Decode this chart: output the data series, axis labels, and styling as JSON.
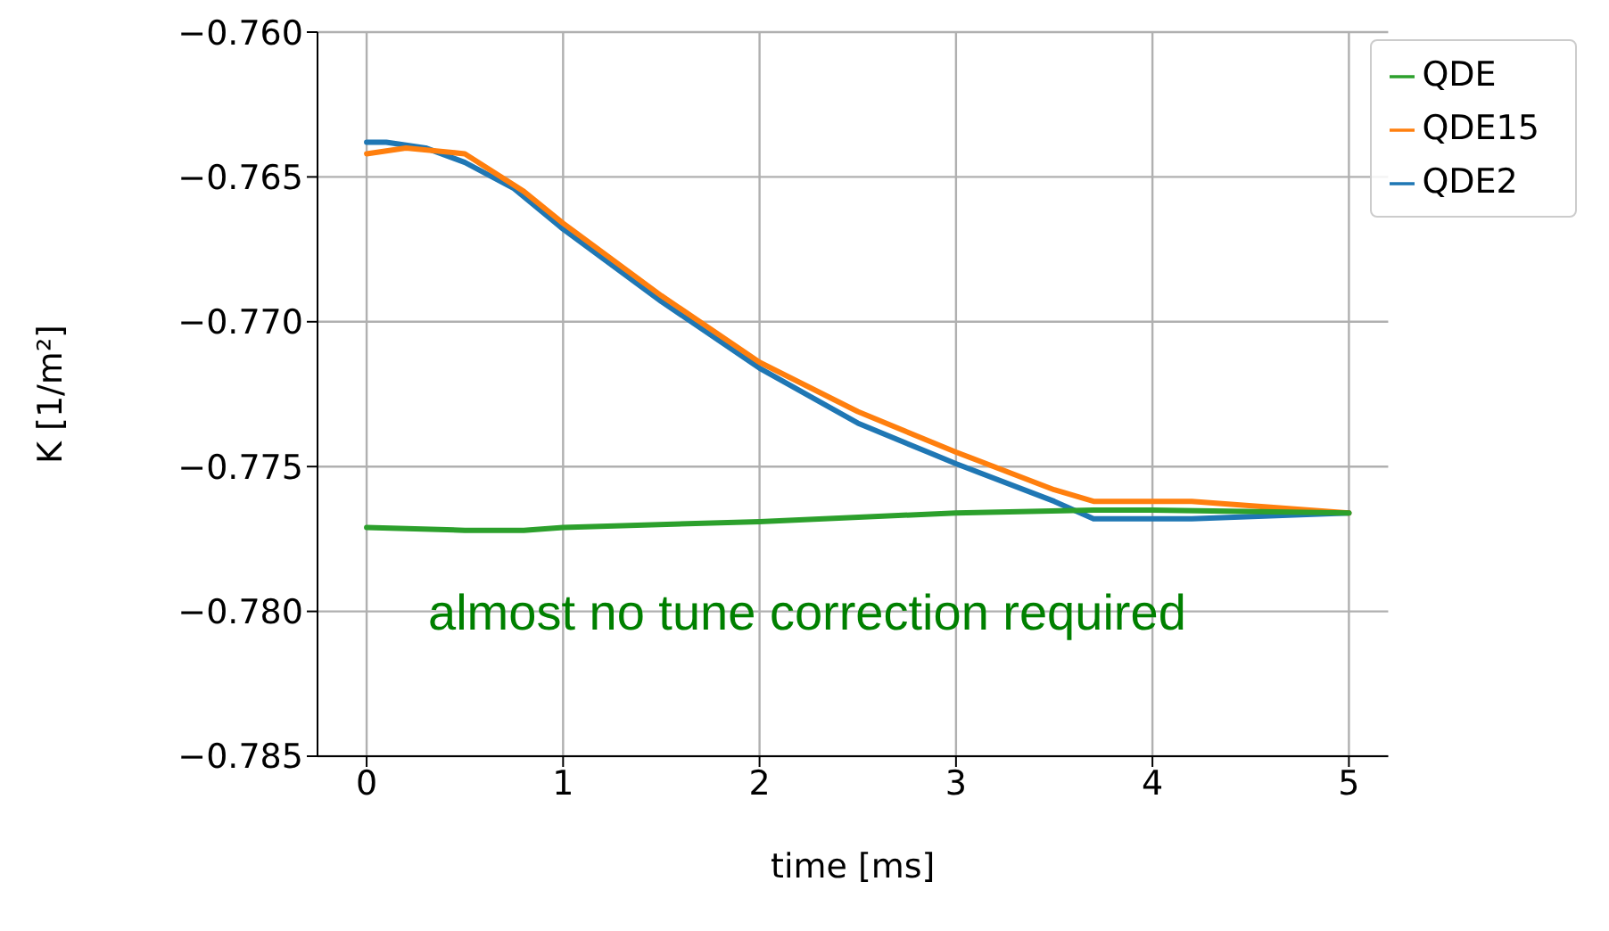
{
  "chart_data": {
    "type": "line",
    "xlabel": "time [ms]",
    "ylabel": "K [1/m²]",
    "xlim": [
      -0.25,
      5.2
    ],
    "xticks": [
      0,
      1,
      2,
      3,
      4,
      5
    ],
    "ylim": [
      -0.785,
      -0.76
    ],
    "yticks": [
      {
        "value": -0.785,
        "label": "−0.785"
      },
      {
        "value": -0.78,
        "label": "−0.780"
      },
      {
        "value": -0.775,
        "label": "−0.775"
      },
      {
        "value": -0.77,
        "label": "−0.770"
      },
      {
        "value": -0.765,
        "label": "−0.765"
      },
      {
        "value": -0.76,
        "label": "−0.760"
      }
    ],
    "grid": true,
    "legend": "top right",
    "line_style": "solid",
    "marker": "none",
    "annotations": [
      "almost no tune correction required"
    ],
    "series": [
      {
        "name": "QDE2",
        "color": "#1f77b4",
        "x": [
          0,
          0.1,
          0.3,
          0.5,
          0.75,
          1,
          1.5,
          2,
          2.5,
          3,
          3.5,
          3.7,
          4.2,
          5
        ],
        "values": [
          -0.7638,
          -0.7638,
          -0.764,
          -0.7645,
          -0.7654,
          -0.7668,
          -0.7693,
          -0.7716,
          -0.7735,
          -0.7749,
          -0.7762,
          -0.7768,
          -0.7768,
          -0.7766
        ]
      },
      {
        "name": "QDE15",
        "color": "#ff7f0e",
        "x": [
          0,
          0.2,
          0.5,
          0.8,
          1,
          1.5,
          2,
          2.5,
          3,
          3.5,
          3.7,
          4.2,
          5
        ],
        "values": [
          -0.7642,
          -0.764,
          -0.7642,
          -0.7655,
          -0.7666,
          -0.7691,
          -0.7714,
          -0.7731,
          -0.7745,
          -0.7758,
          -0.7762,
          -0.7762,
          -0.7766
        ]
      },
      {
        "name": "QDE",
        "color": "#2ca02c",
        "x": [
          0,
          0.5,
          0.8,
          1,
          2,
          3,
          3.7,
          4,
          5
        ],
        "values": [
          -0.7771,
          -0.7772,
          -0.7772,
          -0.7771,
          -0.7769,
          -0.7766,
          -0.7765,
          -0.7765,
          -0.7766
        ]
      }
    ]
  }
}
